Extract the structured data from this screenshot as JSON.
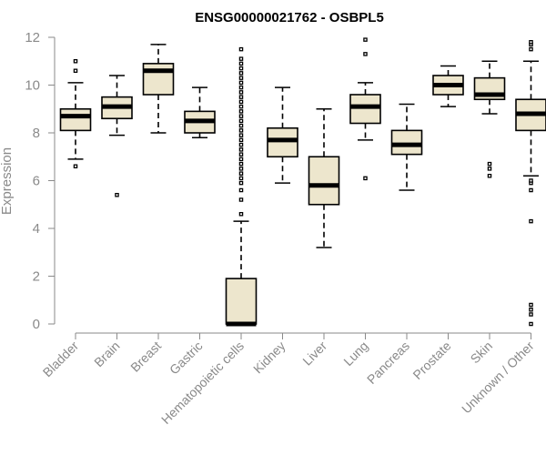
{
  "chart_data": {
    "type": "box",
    "title": "ENSG00000021762 - OSBPL5",
    "xlabel": "",
    "ylabel": "Expression",
    "ylim": [
      0,
      12
    ],
    "yticks": [
      0,
      2,
      4,
      6,
      8,
      10,
      12
    ],
    "grid": false,
    "box_fill": "#ede6cd",
    "categories": [
      "Bladder",
      "Brain",
      "Breast",
      "Gastric",
      "Hematopoietic cells",
      "Kidney",
      "Liver",
      "Lung",
      "Pancreas",
      "Prostate",
      "Skin",
      "Unknown / Other"
    ],
    "boxes": [
      {
        "whisker_low": 6.9,
        "q1": 8.1,
        "median": 8.7,
        "q3": 9.0,
        "whisker_high": 10.1,
        "outliers": [
          6.6,
          10.6,
          11.0
        ]
      },
      {
        "whisker_low": 7.9,
        "q1": 8.6,
        "median": 9.1,
        "q3": 9.5,
        "whisker_high": 10.4,
        "outliers": [
          5.4
        ]
      },
      {
        "whisker_low": 8.0,
        "q1": 9.6,
        "median": 10.6,
        "q3": 10.9,
        "whisker_high": 11.7,
        "outliers": []
      },
      {
        "whisker_low": 7.8,
        "q1": 8.0,
        "median": 8.5,
        "q3": 8.9,
        "whisker_high": 9.9,
        "outliers": []
      },
      {
        "whisker_low": 0.0,
        "q1": 0.0,
        "median": 0.0,
        "q3": 1.9,
        "whisker_high": 4.3,
        "outliers": [
          4.6,
          5.2,
          5.6,
          5.9,
          6.1,
          6.3,
          6.5,
          6.7,
          6.9,
          7.1,
          7.3,
          7.5,
          7.7,
          7.9,
          8.1,
          8.3,
          8.5,
          8.7,
          8.9,
          9.1,
          9.3,
          9.5,
          9.7,
          9.9,
          10.1,
          10.3,
          10.5,
          10.7,
          10.9,
          11.1,
          11.5
        ]
      },
      {
        "whisker_low": 5.9,
        "q1": 7.0,
        "median": 7.7,
        "q3": 8.2,
        "whisker_high": 9.9,
        "outliers": []
      },
      {
        "whisker_low": 3.2,
        "q1": 5.0,
        "median": 5.8,
        "q3": 7.0,
        "whisker_high": 9.0,
        "outliers": []
      },
      {
        "whisker_low": 7.7,
        "q1": 8.4,
        "median": 9.1,
        "q3": 9.6,
        "whisker_high": 10.1,
        "outliers": [
          6.1,
          11.3,
          11.9
        ]
      },
      {
        "whisker_low": 5.6,
        "q1": 7.1,
        "median": 7.5,
        "q3": 8.1,
        "whisker_high": 9.2,
        "outliers": []
      },
      {
        "whisker_low": 9.1,
        "q1": 9.6,
        "median": 10.0,
        "q3": 10.4,
        "whisker_high": 10.8,
        "outliers": []
      },
      {
        "whisker_low": 8.8,
        "q1": 9.4,
        "median": 9.6,
        "q3": 10.3,
        "whisker_high": 11.0,
        "outliers": [
          6.2,
          6.5,
          6.7
        ]
      },
      {
        "whisker_low": 6.2,
        "q1": 8.1,
        "median": 8.8,
        "q3": 9.4,
        "whisker_high": 11.0,
        "outliers": [
          0.0,
          0.4,
          0.6,
          0.8,
          4.3,
          5.6,
          5.9,
          6.0,
          11.5,
          11.7,
          11.8
        ]
      }
    ]
  }
}
